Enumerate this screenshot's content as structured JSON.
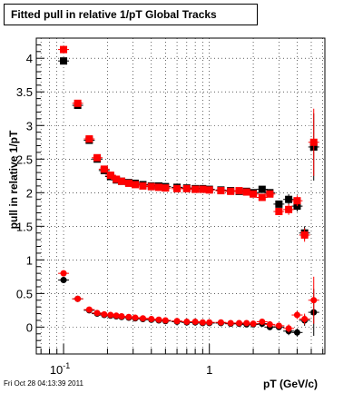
{
  "footer": "Fri Oct 28 04:13:39 2011",
  "chart_data": {
    "type": "scatter",
    "title": "Fitted pull in relative 1/pT  Global Tracks",
    "xlabel": "pT (GeV/c)",
    "ylabel": "pull in relative 1/pT",
    "xscale": "log",
    "xlim": [
      0.065,
      6.2
    ],
    "ylim": [
      -0.4,
      4.3
    ],
    "grid": true,
    "x_tick_labels": [
      "10^-1",
      "1"
    ],
    "y_ticks": [
      0,
      0.5,
      1,
      1.5,
      2,
      2.5,
      3,
      3.5,
      4
    ],
    "y_tick_labels": [
      "0",
      "0.5",
      "1",
      "1.5",
      "2",
      "2.5",
      "3",
      "3.5",
      "4"
    ],
    "series": [
      {
        "marker": "square",
        "color": "#000000",
        "x": [
          0.1,
          0.125,
          0.15,
          0.17,
          0.19,
          0.21,
          0.23,
          0.25,
          0.28,
          0.31,
          0.35,
          0.4,
          0.45,
          0.5,
          0.6,
          0.7,
          0.8,
          0.9,
          1.0,
          1.2,
          1.4,
          1.6,
          1.8,
          2.0,
          2.3,
          2.6,
          3.0,
          3.5,
          4.0,
          4.5,
          5.2
        ],
        "y": [
          3.96,
          3.3,
          2.78,
          2.5,
          2.33,
          2.24,
          2.19,
          2.17,
          2.15,
          2.14,
          2.12,
          2.1,
          2.1,
          2.09,
          2.08,
          2.07,
          2.06,
          2.06,
          2.05,
          2.04,
          2.03,
          2.02,
          2.02,
          2.0,
          2.05,
          2.0,
          1.83,
          1.9,
          1.8,
          1.4,
          2.68
        ],
        "y_err": [
          0.05,
          0.05,
          0.03,
          0.03,
          0.02,
          0.02,
          0.01,
          0.01,
          0.01,
          0.01,
          0.01,
          0.01,
          0.01,
          0.01,
          0.01,
          0.01,
          0.01,
          0.01,
          0.01,
          0.01,
          0.01,
          0.02,
          0.02,
          0.02,
          0.04,
          0.05,
          0.05,
          0.08,
          0.08,
          0.1,
          0.5
        ]
      },
      {
        "marker": "square",
        "color": "#ff0000",
        "x": [
          0.1,
          0.125,
          0.15,
          0.17,
          0.19,
          0.21,
          0.23,
          0.25,
          0.28,
          0.31,
          0.35,
          0.4,
          0.45,
          0.5,
          0.6,
          0.7,
          0.8,
          0.9,
          1.0,
          1.2,
          1.4,
          1.6,
          1.8,
          2.0,
          2.3,
          2.6,
          3.0,
          3.5,
          4.0,
          4.5,
          5.2
        ],
        "y": [
          4.13,
          3.33,
          2.8,
          2.52,
          2.35,
          2.26,
          2.2,
          2.17,
          2.14,
          2.12,
          2.1,
          2.09,
          2.08,
          2.07,
          2.06,
          2.06,
          2.05,
          2.05,
          2.04,
          2.03,
          2.02,
          2.03,
          2.01,
          1.98,
          1.93,
          1.98,
          1.72,
          1.75,
          1.88,
          1.37,
          2.75
        ],
        "y_err": [
          0.05,
          0.05,
          0.03,
          0.03,
          0.02,
          0.02,
          0.01,
          0.01,
          0.01,
          0.01,
          0.01,
          0.01,
          0.01,
          0.01,
          0.01,
          0.01,
          0.01,
          0.01,
          0.01,
          0.01,
          0.01,
          0.02,
          0.02,
          0.02,
          0.04,
          0.05,
          0.05,
          0.08,
          0.08,
          0.1,
          0.5
        ]
      },
      {
        "marker": "circle",
        "color": "#000000",
        "x": [
          0.1,
          0.125,
          0.15,
          0.17,
          0.19,
          0.21,
          0.23,
          0.25,
          0.28,
          0.31,
          0.35,
          0.4,
          0.45,
          0.5,
          0.6,
          0.7,
          0.8,
          0.9,
          1.0,
          1.2,
          1.4,
          1.6,
          1.8,
          2.0,
          2.3,
          2.6,
          3.0,
          3.5,
          4.0,
          4.5,
          5.2
        ],
        "y": [
          0.7,
          0.42,
          0.25,
          0.2,
          0.18,
          0.17,
          0.16,
          0.15,
          0.14,
          0.13,
          0.12,
          0.11,
          0.1,
          0.09,
          0.08,
          0.07,
          0.07,
          0.06,
          0.06,
          0.06,
          0.05,
          0.05,
          0.04,
          0.04,
          0.05,
          0.0,
          0.0,
          -0.06,
          -0.08,
          0.1,
          0.22
        ],
        "y_err": [
          0.04,
          0.03,
          0.02,
          0.01,
          0.01,
          0.01,
          0.01,
          0.01,
          0.01,
          0.01,
          0.01,
          0.01,
          0.01,
          0.01,
          0.01,
          0.01,
          0.01,
          0.01,
          0.01,
          0.01,
          0.01,
          0.01,
          0.01,
          0.02,
          0.03,
          0.04,
          0.04,
          0.06,
          0.06,
          0.08,
          0.35
        ]
      },
      {
        "marker": "circle",
        "color": "#ff0000",
        "x": [
          0.1,
          0.125,
          0.15,
          0.17,
          0.19,
          0.21,
          0.23,
          0.25,
          0.28,
          0.31,
          0.35,
          0.4,
          0.45,
          0.5,
          0.6,
          0.7,
          0.8,
          0.9,
          1.0,
          1.2,
          1.4,
          1.6,
          1.8,
          2.0,
          2.3,
          2.6,
          3.0,
          3.5,
          4.0,
          4.5,
          5.2
        ],
        "y": [
          0.8,
          0.42,
          0.26,
          0.21,
          0.19,
          0.18,
          0.17,
          0.16,
          0.15,
          0.14,
          0.13,
          0.12,
          0.11,
          0.1,
          0.09,
          0.08,
          0.08,
          0.07,
          0.07,
          0.07,
          0.06,
          0.06,
          0.06,
          0.05,
          0.08,
          0.04,
          0.02,
          -0.02,
          0.18,
          0.12,
          0.4
        ],
        "y_err": [
          0.04,
          0.03,
          0.02,
          0.01,
          0.01,
          0.01,
          0.01,
          0.01,
          0.01,
          0.01,
          0.01,
          0.01,
          0.01,
          0.01,
          0.01,
          0.01,
          0.01,
          0.01,
          0.01,
          0.01,
          0.01,
          0.01,
          0.01,
          0.02,
          0.03,
          0.04,
          0.04,
          0.06,
          0.06,
          0.08,
          0.35
        ]
      }
    ]
  }
}
